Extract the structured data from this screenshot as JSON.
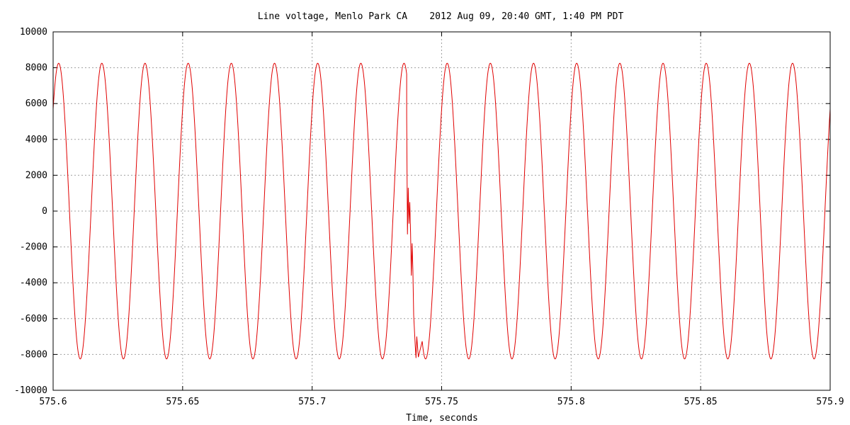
{
  "chart_data": {
    "type": "line",
    "title": "Line voltage, Menlo Park CA    2012 Aug 09, 20:40 GMT, 1:40 PM PDT",
    "xlabel": "Time, seconds",
    "ylabel": "",
    "xlim": [
      575.6,
      575.9
    ],
    "ylim": [
      -10000,
      10000
    ],
    "x_ticks": [
      575.6,
      575.65,
      575.7,
      575.75,
      575.8,
      575.85,
      575.9
    ],
    "x_tick_labels": [
      "575.6",
      "575.65",
      "575.7",
      "575.75",
      "575.8",
      "575.85",
      "575.9"
    ],
    "y_ticks": [
      10000,
      8000,
      6000,
      4000,
      2000,
      0,
      -2000,
      -4000,
      -6000,
      -8000,
      -10000
    ],
    "y_tick_labels": [
      "10000",
      "8000",
      "6000",
      "4000",
      "2000",
      "0",
      "-2000",
      "-4000",
      "-6000",
      "-8000",
      "-10000"
    ],
    "grid": true,
    "legend": "none",
    "series": [
      {
        "color": "#e00000",
        "waveform": {
          "shape": "sine",
          "frequency_hz": 60,
          "amplitude": 8250,
          "start_value": 5700,
          "start_direction": "rising"
        },
        "transient": {
          "time_range": [
            575.7365,
            575.7425
          ],
          "points": [
            [
              575.7365,
              5300
            ],
            [
              575.7368,
              -1300
            ],
            [
              575.7371,
              1300
            ],
            [
              575.7374,
              -700
            ],
            [
              575.7377,
              500
            ],
            [
              575.738,
              -1200
            ],
            [
              575.7383,
              -3600
            ],
            [
              575.7386,
              -1800
            ],
            [
              575.7389,
              -3300
            ],
            [
              575.7392,
              -5800
            ],
            [
              575.7398,
              -7500
            ],
            [
              575.7401,
              -8200
            ],
            [
              575.7404,
              -7000
            ],
            [
              575.741,
              -8150
            ]
          ]
        }
      }
    ]
  }
}
